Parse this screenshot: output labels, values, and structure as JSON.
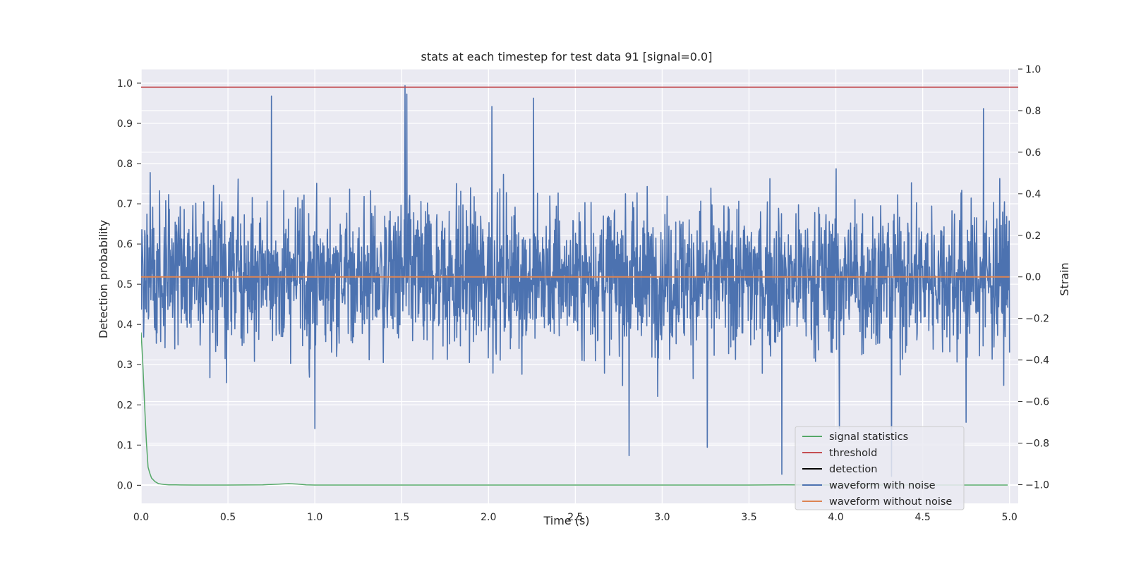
{
  "chart_data": {
    "type": "line",
    "title": "stats at each timestep for test data 91 [signal=0.0]",
    "xlabel": "Time (s)",
    "ylabel": "Detection probability",
    "ylabel_right": "Strain",
    "xlim": [
      0.0,
      5.05
    ],
    "ylim": [
      -0.045,
      1.035
    ],
    "ylim_right": [
      -1.09,
      1.0
    ],
    "x_ticks": [
      "0.0",
      "0.5",
      "1.0",
      "1.5",
      "2.0",
      "2.5",
      "3.0",
      "3.5",
      "4.0",
      "4.5",
      "5.0"
    ],
    "y_ticks": [
      "0.0",
      "0.1",
      "0.2",
      "0.3",
      "0.4",
      "0.5",
      "0.6",
      "0.7",
      "0.8",
      "0.9",
      "1.0"
    ],
    "y_ticks_right": [
      "−1.0",
      "−0.8",
      "−0.6",
      "−0.4",
      "−0.2",
      "0.0",
      "0.2",
      "0.4",
      "0.6",
      "0.8",
      "1.0"
    ],
    "grid": true,
    "legend_position": "lower-right",
    "series": [
      {
        "name": "signal statistics",
        "axis": "left",
        "color": "#55a868",
        "x": [
          0.0,
          0.01,
          0.02,
          0.03,
          0.04,
          0.05,
          0.06,
          0.08,
          0.1,
          0.13,
          0.16,
          0.2,
          0.3,
          0.5,
          0.7,
          0.8,
          0.85,
          0.9,
          0.95,
          1.0,
          1.5,
          2.0,
          3.0,
          3.5,
          3.7,
          4.0,
          4.5,
          4.99
        ],
        "values": [
          0.38,
          0.3,
          0.2,
          0.11,
          0.045,
          0.03,
          0.018,
          0.009,
          0.004,
          0.002,
          0.001,
          0.001,
          0.0005,
          0.0005,
          0.001,
          0.003,
          0.004,
          0.003,
          0.001,
          0.0005,
          0.0005,
          0.0005,
          0.0005,
          0.0005,
          0.001,
          0.0005,
          0.0005,
          0.0005
        ]
      },
      {
        "name": "threshold",
        "axis": "left",
        "color": "#c44e52",
        "x": [
          0.0,
          5.05
        ],
        "values": [
          0.99,
          0.99
        ]
      },
      {
        "name": "detection",
        "axis": "left",
        "color": "#000000",
        "x": [],
        "values": []
      },
      {
        "name": "waveform with noise",
        "axis": "right",
        "color": "#4c72b0",
        "x": [
          0.0,
          5.0
        ],
        "generated_noise": {
          "samples": 2400,
          "amplitude": 0.28,
          "min": -1.0,
          "max": 0.92
        },
        "spikes": [
          {
            "x": 0.75,
            "value": 0.87
          },
          {
            "x": 1.52,
            "value": 0.92
          },
          {
            "x": 1.53,
            "value": 0.88
          },
          {
            "x": 2.02,
            "value": 0.82
          },
          {
            "x": 2.26,
            "value": 0.86
          },
          {
            "x": 2.81,
            "value": -0.86
          },
          {
            "x": 3.69,
            "value": -0.95
          },
          {
            "x": 4.32,
            "value": -0.96
          },
          {
            "x": 4.85,
            "value": 0.81
          },
          {
            "x": 4.02,
            "value": -0.73
          },
          {
            "x": 1.0,
            "value": -0.73
          },
          {
            "x": 3.26,
            "value": -0.82
          },
          {
            "x": 4.75,
            "value": -0.7
          }
        ]
      },
      {
        "name": "waveform without noise",
        "axis": "right",
        "color": "#dd8452",
        "x": [
          0.0,
          5.0
        ],
        "values": [
          0.0,
          0.0
        ]
      }
    ]
  }
}
